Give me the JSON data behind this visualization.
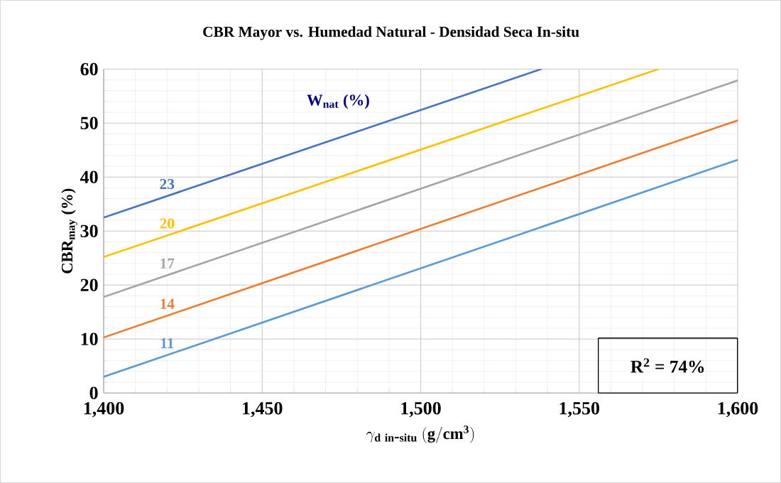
{
  "chart_data": {
    "type": "line",
    "title": "CBR Mayor vs. Humedad Natural - Densidad Seca In-situ",
    "xlabel": "\\gamma_{\\mathbf{d\\ in\\mbox{-}situ}}\\ \\mathbf{(g/cm^{3})}",
    "ylabel": "CBR$_{may}$ (%)",
    "legend_title": "W$_{nat}$ (%)",
    "annotations": [
      "R$^{2}$ = 74%"
    ],
    "xlim": [
      1400,
      1600
    ],
    "ylim": [
      0,
      60
    ],
    "xticks": [
      {
        "value": 1400,
        "label": "1,400"
      },
      {
        "value": 1450,
        "label": "1,450"
      },
      {
        "value": 1500,
        "label": "1,500"
      },
      {
        "value": 1550,
        "label": "1,550"
      },
      {
        "value": 1600,
        "label": "1,600"
      }
    ],
    "yticks": [
      0,
      10,
      20,
      30,
      40,
      50,
      60
    ],
    "grid": true,
    "marker": "none",
    "line_style": "solid",
    "series": [
      {
        "name": "23",
        "color": "#4472c4",
        "x": [
          1400,
          1538
        ],
        "values": [
          32.5,
          60
        ]
      },
      {
        "name": "20",
        "color": "#ffc000",
        "x": [
          1400,
          1575
        ],
        "values": [
          25.2,
          60
        ]
      },
      {
        "name": "17",
        "color": "#a5a5a5",
        "x": [
          1400,
          1600
        ],
        "values": [
          17.8,
          57.9
        ]
      },
      {
        "name": "14",
        "color": "#ed7d31",
        "x": [
          1400,
          1600
        ],
        "values": [
          10.3,
          50.5
        ]
      },
      {
        "name": "11",
        "color": "#5b9bd5",
        "x": [
          1400,
          1600
        ],
        "values": [
          3.0,
          43.2
        ]
      }
    ]
  }
}
